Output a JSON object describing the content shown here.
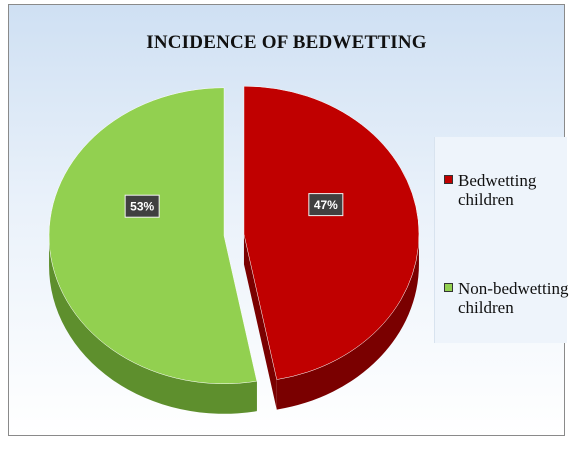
{
  "chart_data": {
    "type": "pie",
    "title": "INCIDENCE OF BEDWETTING",
    "slices": [
      {
        "name": "Bedwetting children",
        "value": 47,
        "label": "47%",
        "color": "#c00000",
        "side_color": "#7a0000"
      },
      {
        "name": "Non-bedwetting children",
        "value": 53,
        "label": "53%",
        "color": "#92d050",
        "side_color": "#5e8f2d"
      }
    ],
    "legend": {
      "position": "right",
      "items": [
        {
          "lines": [
            "Bedwetting",
            "children"
          ],
          "color": "#c00000"
        },
        {
          "lines": [
            "Non-bedwetting",
            "children"
          ],
          "color": "#92d050"
        }
      ]
    },
    "style": "3d-exploded"
  }
}
